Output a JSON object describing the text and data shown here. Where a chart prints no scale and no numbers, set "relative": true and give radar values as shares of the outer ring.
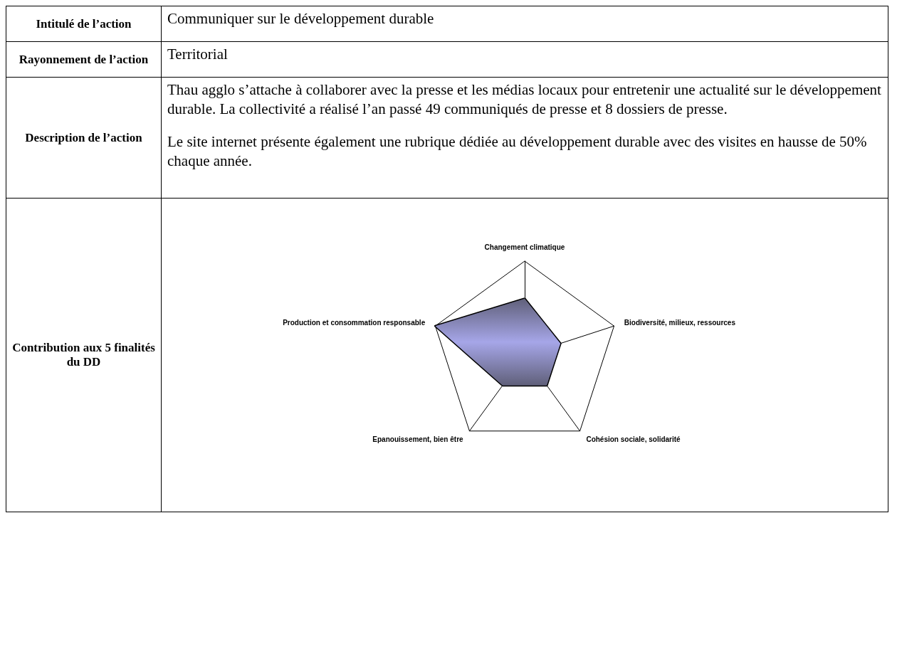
{
  "chart_data": {
    "type": "radar",
    "relative": true,
    "categories": [
      "Changement climatique",
      "Biodiversité, milieux, ressources",
      "Cohésion sociale, solidarité",
      "Epanouissement, bien être",
      "Production et consommation responsable"
    ],
    "series": [
      {
        "color": "#a6a6e8",
        "values": [
          0.6,
          0.4,
          0.4,
          0.4,
          1
        ]
      }
    ],
    "annotations": [
      "Intitulé de l’action",
      "Communiquer sur le développement durable",
      "Rayonnement de l’action",
      "Territorial",
      "Description de l’action",
      "Thau agglo s’attache à collaborer avec la presse et les médias locaux pour entretenir une actualité sur le développement durable. La collectivité a réalisé l’an passé 49 communiqués de presse et 8 dossiers de presse.",
      "Le site internet présente également une rubrique dédiée au développement durable avec des visites en hausse de 50% chaque année.",
      "Contribution aux 5 finalités du DD"
    ]
  }
}
